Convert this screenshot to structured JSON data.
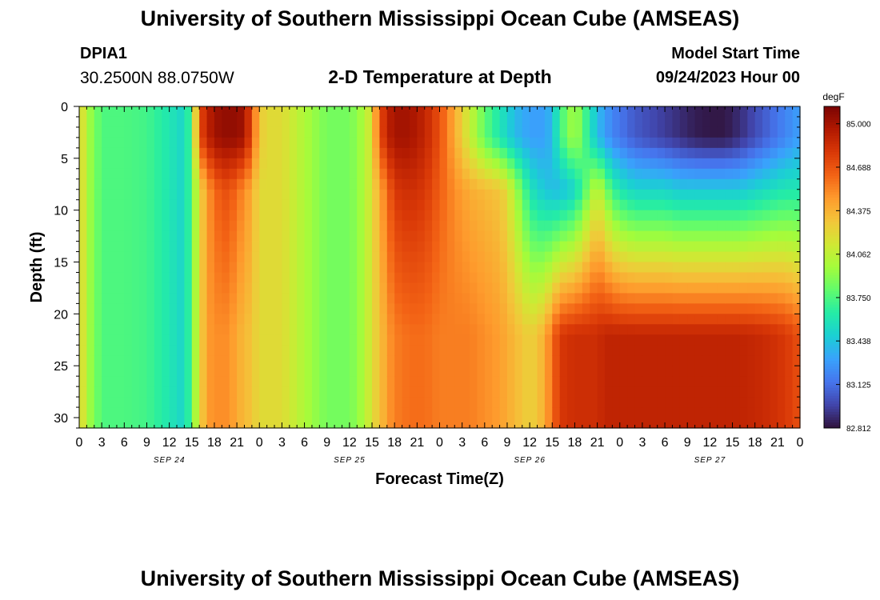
{
  "header": {
    "title": "University of Southern Mississippi Ocean Cube (AMSEAS)",
    "station_id": "DPIA1",
    "station_coords": "30.2500N  88.0750W",
    "plot_title": "2-D Temperature at Depth",
    "model_start_label": "Model Start Time",
    "model_start_value": "09/24/2023 Hour 00"
  },
  "footer": {
    "title": "University of Southern Mississippi Ocean Cube (AMSEAS)"
  },
  "chart_data": {
    "type": "heatmap",
    "title": "2-D Temperature at Depth",
    "xlabel": "Forecast Time(Z)",
    "ylabel": "Depth (ft)",
    "x_tick_labels": [
      "0",
      "3",
      "6",
      "9",
      "12",
      "15",
      "18",
      "21",
      "0",
      "3",
      "6",
      "9",
      "12",
      "15",
      "18",
      "21",
      "0",
      "3",
      "6",
      "9",
      "12",
      "15",
      "18",
      "21",
      "0",
      "3",
      "6",
      "9",
      "12",
      "15",
      "18",
      "21",
      "0"
    ],
    "x_day_labels": [
      {
        "label": "SEP 24",
        "hour": 12
      },
      {
        "label": "SEP 25",
        "hour": 36
      },
      {
        "label": "SEP 26",
        "hour": 60
      },
      {
        "label": "SEP 27",
        "hour": 84
      }
    ],
    "xlim_hours": [
      0,
      96
    ],
    "y_ticks": [
      0,
      5,
      10,
      15,
      20,
      25,
      30
    ],
    "ylim_ft": [
      0,
      31
    ],
    "y_inverted": true,
    "colorbar": {
      "unit": "degF",
      "min": 82.812,
      "max": 85.125,
      "tick_values": [
        85.0,
        84.688,
        84.375,
        84.062,
        83.75,
        83.438,
        83.125,
        82.812
      ],
      "tick_labels": [
        "85.000",
        "84.688",
        "84.375",
        "84.062",
        "83.750",
        "83.438",
        "83.125",
        "82.812"
      ],
      "colors": [
        "#30123b",
        "#4145ab",
        "#4675ed",
        "#39a2fc",
        "#1bcfd4",
        "#24eca6",
        "#61fc6c",
        "#a4fc3b",
        "#d1e834",
        "#f3c63a",
        "#fe9b2d",
        "#f36315",
        "#d93807",
        "#b11901",
        "#7a0403"
      ]
    },
    "columns_per_hour": 1,
    "rows": 31,
    "temperature_profile_degF": {
      "hours": [
        0,
        1,
        3,
        6,
        9,
        12,
        14,
        15,
        16,
        17,
        18,
        19,
        20,
        21,
        22,
        23,
        24,
        25,
        27,
        30,
        33,
        36,
        38,
        39,
        40,
        41,
        42,
        44,
        46,
        48,
        50,
        52,
        54,
        56,
        57,
        58,
        59,
        60,
        61,
        62,
        63,
        64,
        66,
        68,
        69,
        70,
        71,
        72,
        73,
        74,
        76,
        78,
        80,
        82,
        84,
        86,
        88,
        90,
        92,
        94,
        96
      ],
      "surface": [
        84.3,
        84.0,
        83.75,
        83.75,
        83.72,
        83.6,
        83.5,
        83.8,
        84.7,
        84.9,
        85.0,
        85.05,
        85.05,
        85.05,
        85.0,
        84.7,
        84.3,
        84.2,
        84.2,
        84.0,
        83.85,
        83.85,
        84.0,
        84.2,
        84.7,
        84.9,
        85.0,
        85.0,
        84.9,
        84.7,
        84.4,
        84.1,
        83.8,
        83.6,
        83.5,
        83.4,
        83.35,
        83.3,
        83.3,
        83.3,
        83.4,
        83.7,
        84.0,
        83.6,
        83.4,
        83.3,
        83.2,
        83.15,
        83.1,
        83.05,
        83.0,
        82.95,
        82.9,
        82.85,
        82.83,
        82.83,
        82.9,
        83.0,
        83.1,
        83.2,
        83.3
      ],
      "mid": [
        84.3,
        84.0,
        83.75,
        83.75,
        83.72,
        83.6,
        83.5,
        83.8,
        84.2,
        84.45,
        84.6,
        84.7,
        84.7,
        84.6,
        84.5,
        84.4,
        84.2,
        84.2,
        84.2,
        84.0,
        83.85,
        83.85,
        84.0,
        84.2,
        84.4,
        84.6,
        84.8,
        84.85,
        84.8,
        84.65,
        84.5,
        84.4,
        84.35,
        84.3,
        84.2,
        84.0,
        83.8,
        83.6,
        83.5,
        83.45,
        83.4,
        83.4,
        83.5,
        83.9,
        84.1,
        83.9,
        83.7,
        83.6,
        83.55,
        83.5,
        83.5,
        83.5,
        83.45,
        83.45,
        83.45,
        83.45,
        83.45,
        83.5,
        83.55,
        83.6,
        83.6
      ],
      "bottom": [
        84.3,
        84.0,
        83.75,
        83.75,
        83.72,
        83.6,
        83.5,
        83.8,
        84.2,
        84.45,
        84.5,
        84.5,
        84.5,
        84.4,
        84.35,
        84.3,
        84.2,
        84.2,
        84.2,
        84.0,
        83.85,
        83.85,
        84.0,
        84.2,
        84.3,
        84.45,
        84.55,
        84.6,
        84.6,
        84.55,
        84.55,
        84.55,
        84.5,
        84.45,
        84.4,
        84.35,
        84.3,
        84.25,
        84.3,
        84.4,
        84.6,
        84.8,
        84.85,
        84.85,
        84.85,
        84.9,
        84.9,
        84.9,
        84.9,
        84.9,
        84.9,
        84.9,
        84.9,
        84.9,
        84.9,
        84.9,
        84.9,
        84.88,
        84.85,
        84.8,
        84.7
      ]
    }
  }
}
